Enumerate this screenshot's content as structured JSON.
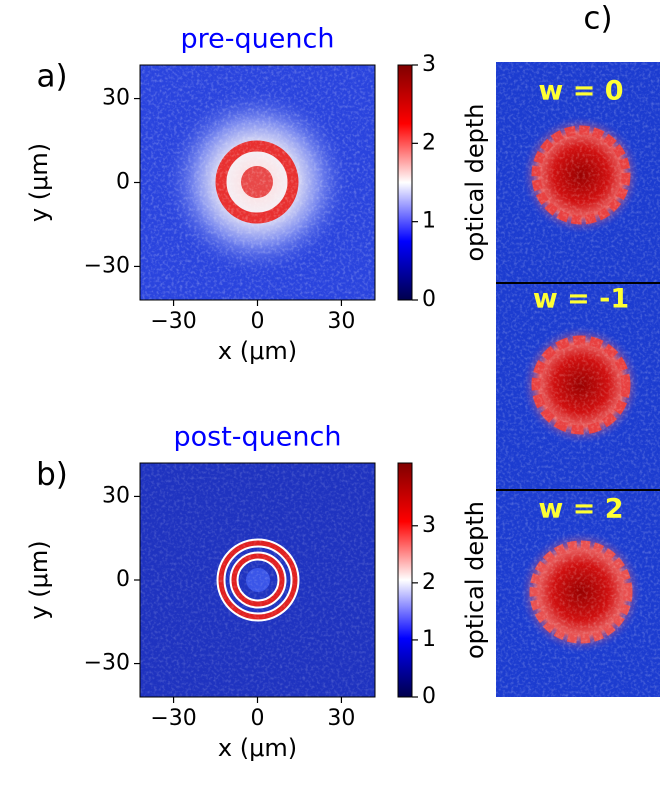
{
  "chart_data": [
    {
      "type": "heatmap",
      "panel": "a)",
      "title": "pre-quench",
      "title_color": "#0000ff",
      "xlabel": "x (μm)",
      "ylabel": "y (μm)",
      "xlim": [
        -42,
        42
      ],
      "ylim": [
        -42,
        42
      ],
      "xticks": [
        {
          "value": -30,
          "label": "−30"
        },
        0,
        30
      ],
      "yticks": [
        {
          "value": -30,
          "label": "−30"
        },
        0,
        30
      ],
      "colorbar_label": "optical depth",
      "clim": [
        0,
        3
      ],
      "cticks": [
        0,
        1,
        2,
        3
      ],
      "colormap": [
        "#00004c",
        "#0000ff",
        "#ffffff",
        "#ff0000",
        "#800000"
      ]
    },
    {
      "type": "heatmap",
      "panel": "b)",
      "title": "post-quench",
      "title_color": "#0000ff",
      "xlabel": "x (μm)",
      "ylabel": "y (μm)",
      "xlim": [
        -42,
        42
      ],
      "ylim": [
        -42,
        42
      ],
      "xticks": [
        {
          "value": -30,
          "label": "−30"
        },
        0,
        30
      ],
      "yticks": [
        {
          "value": -30,
          "label": "−30"
        },
        0,
        30
      ],
      "colorbar_label": "optical depth",
      "clim": [
        0,
        4.1
      ],
      "cticks": [
        0,
        1,
        2,
        3
      ],
      "colormap": [
        "#00004c",
        "#0000ff",
        "#ffffff",
        "#ff0000",
        "#800000"
      ]
    },
    {
      "type": "image",
      "panel": "c)",
      "labels": [
        "w = 0",
        "w = -1",
        "w = 2"
      ],
      "label_color": "#ffff33"
    }
  ]
}
